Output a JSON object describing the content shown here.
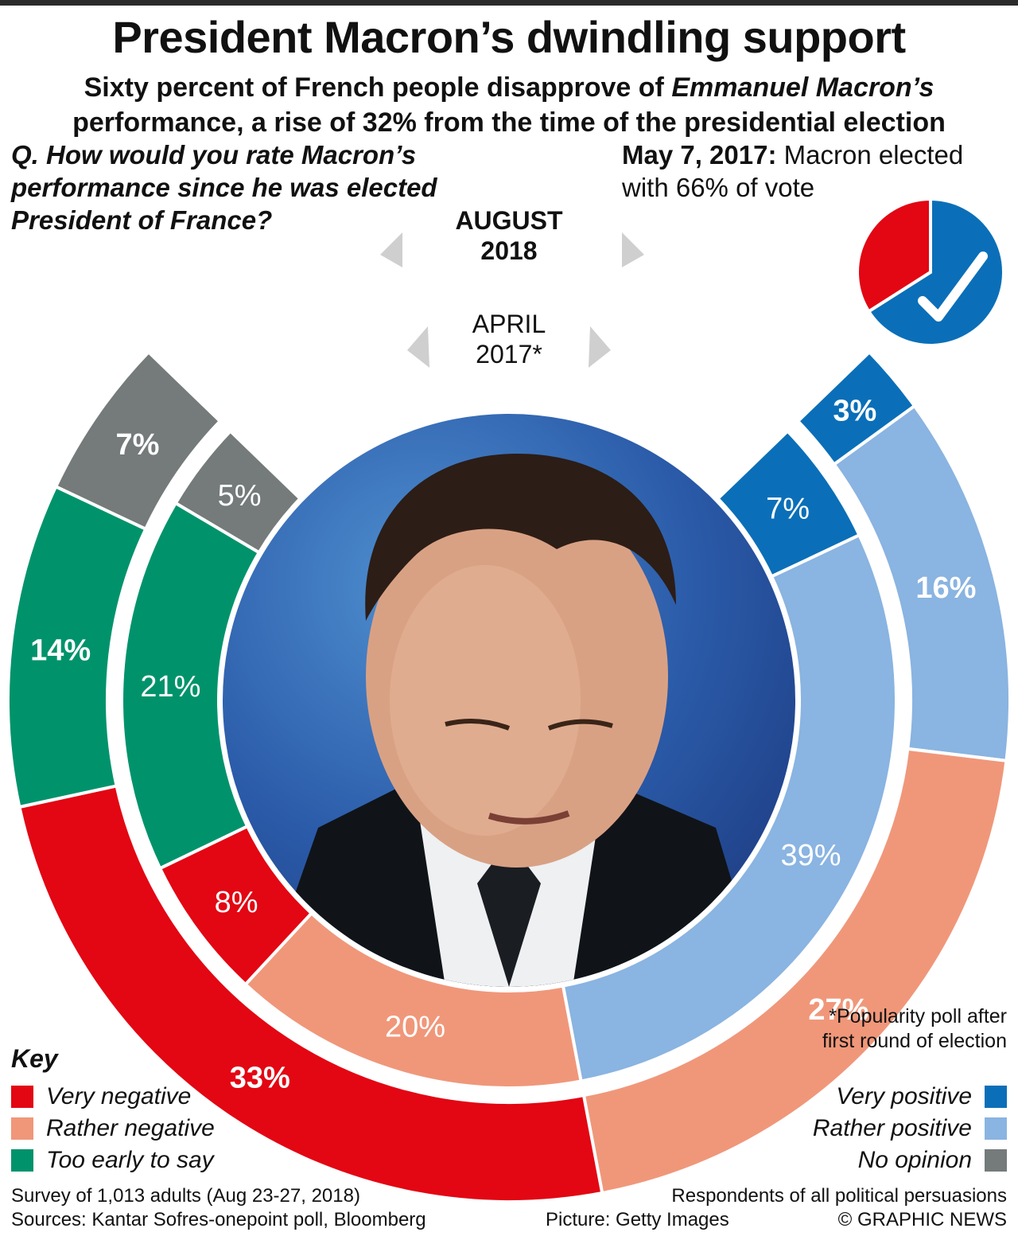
{
  "header": {
    "title": "President Macron’s dwindling support",
    "subtitle_line1_pre": "Sixty percent of French people disapprove of ",
    "subtitle_line1_em": "Emmanuel Macron’s",
    "subtitle_line2": "performance, a rise of 32% from the time of the presidential election"
  },
  "question": "Q. How would you rate Macron’s performance since he was elected President of France?",
  "election_note": {
    "date": "May 7, 2017:",
    "text": " Macron elected with 66% of vote",
    "pie": {
      "values": [
        66,
        34
      ],
      "colors": [
        "#0a6fb8",
        "#e30613"
      ]
    }
  },
  "chart_data": {
    "type": "pie",
    "subtype": "nested-donut",
    "categories": [
      "Very positive",
      "Rather positive",
      "Rather negative",
      "Very negative",
      "Too early to say",
      "No opinion"
    ],
    "series": [
      {
        "name": "AUGUST 2018",
        "ring": "outer",
        "values": [
          3,
          16,
          27,
          33,
          14,
          7
        ]
      },
      {
        "name": "APRIL 2017*",
        "ring": "inner",
        "values": [
          7,
          39,
          20,
          8,
          21,
          5
        ]
      }
    ],
    "colors": [
      "#0a6fb8",
      "#8ab4e1",
      "#f0977a",
      "#e30613",
      "#00936b",
      "#747b7a"
    ],
    "label_colors": {
      "outer": [
        "#ffffff",
        "#ffffff",
        "#ffffff",
        "#ffffff",
        "#ffffff",
        "#ffffff"
      ],
      "inner": [
        "#ffffff",
        "#ffffff",
        "#ffffff",
        "#ffffff",
        "#ffffff",
        "#ffffff"
      ]
    }
  },
  "ring_labels": {
    "outer_line1": "AUGUST",
    "outer_line2": "2018",
    "inner_line1": "APRIL",
    "inner_line2": "2017*"
  },
  "photo": {
    "icon": "macron-portrait-photo"
  },
  "key": {
    "title": "Key",
    "left": [
      {
        "label": "Very negative",
        "color": "#e30613"
      },
      {
        "label": "Rather negative",
        "color": "#f0977a"
      },
      {
        "label": "Too early to say",
        "color": "#00936b"
      }
    ],
    "right": [
      {
        "label": "Very positive",
        "color": "#0a6fb8"
      },
      {
        "label": "Rather positive",
        "color": "#8ab4e1"
      },
      {
        "label": "No opinion",
        "color": "#747b7a"
      }
    ]
  },
  "footnote": "*Popularity poll after first round of election",
  "footer": {
    "survey": "Survey of 1,013 adults (Aug 23-27, 2018)",
    "sources": "Sources: Kantar Sofres-onepoint poll, Bloomberg",
    "respondents": "Respondents of all political persuasions",
    "picture": "Picture: Getty Images",
    "copyright": "© GRAPHIC NEWS"
  }
}
